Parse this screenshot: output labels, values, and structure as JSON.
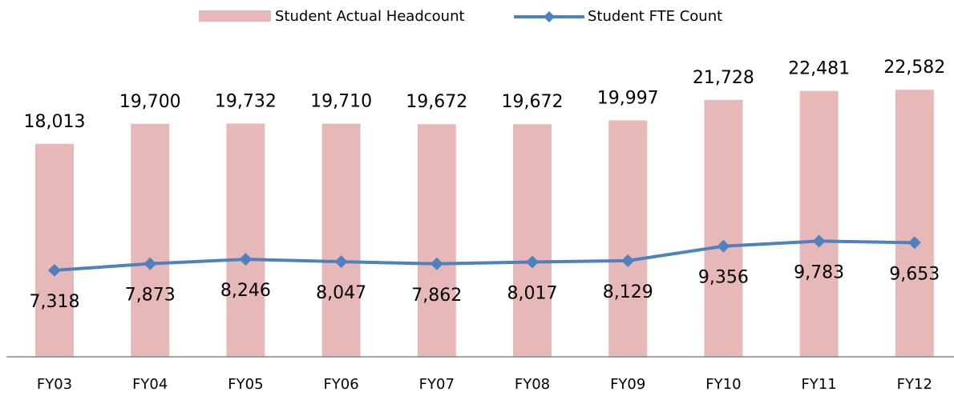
{
  "chart_data": {
    "type": "bar",
    "categories": [
      "FY03",
      "FY04",
      "FY05",
      "FY06",
      "FY07",
      "FY08",
      "FY09",
      "FY10",
      "FY11",
      "FY12"
    ],
    "ylim": [
      0,
      30000
    ],
    "series": [
      {
        "name": "Student Actual Headcount",
        "type": "bar",
        "color": "#e6b9b8",
        "values": [
          18013,
          19700,
          19732,
          19710,
          19672,
          19672,
          19997,
          21728,
          22481,
          22582
        ],
        "value_labels": [
          "18,013",
          "19,700",
          "19,732",
          "19,710",
          "19,672",
          "19,672",
          "19,997",
          "21,728",
          "22,481",
          "22,582"
        ]
      },
      {
        "name": "Student FTE Count",
        "type": "line",
        "color": "#4f81bd",
        "values": [
          7318,
          7873,
          8246,
          8047,
          7862,
          8017,
          8129,
          9356,
          9783,
          9653
        ],
        "value_labels": [
          "7,318",
          "7,873",
          "8,246",
          "8,047",
          "7,862",
          "8,017",
          "8,129",
          "9,356",
          "9,783",
          "9,653"
        ]
      }
    ],
    "legend": "top"
  }
}
